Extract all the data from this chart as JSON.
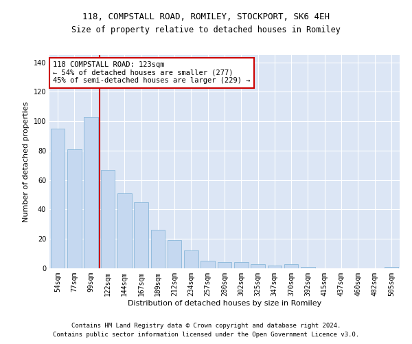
{
  "title1": "118, COMPSTALL ROAD, ROMILEY, STOCKPORT, SK6 4EH",
  "title2": "Size of property relative to detached houses in Romiley",
  "xlabel": "Distribution of detached houses by size in Romiley",
  "ylabel": "Number of detached properties",
  "categories": [
    "54sqm",
    "77sqm",
    "99sqm",
    "122sqm",
    "144sqm",
    "167sqm",
    "189sqm",
    "212sqm",
    "234sqm",
    "257sqm",
    "280sqm",
    "302sqm",
    "325sqm",
    "347sqm",
    "370sqm",
    "392sqm",
    "415sqm",
    "437sqm",
    "460sqm",
    "482sqm",
    "505sqm"
  ],
  "values": [
    95,
    81,
    103,
    67,
    51,
    45,
    26,
    19,
    12,
    5,
    4,
    4,
    3,
    2,
    3,
    1,
    0,
    0,
    0,
    0,
    1
  ],
  "bar_color": "#c5d8f0",
  "bar_edge_color": "#7aafd4",
  "highlight_line_color": "#cc0000",
  "annotation_text": "118 COMPSTALL ROAD: 123sqm\n← 54% of detached houses are smaller (277)\n45% of semi-detached houses are larger (229) →",
  "annotation_box_color": "#ffffff",
  "annotation_box_edge": "#cc0000",
  "ylim": [
    0,
    145
  ],
  "yticks": [
    0,
    20,
    40,
    60,
    80,
    100,
    120,
    140
  ],
  "background_color": "#dce6f5",
  "footer1": "Contains HM Land Registry data © Crown copyright and database right 2024.",
  "footer2": "Contains public sector information licensed under the Open Government Licence v3.0.",
  "title1_fontsize": 9,
  "title2_fontsize": 8.5,
  "xlabel_fontsize": 8,
  "ylabel_fontsize": 8,
  "tick_fontsize": 7,
  "annotation_fontsize": 7.5,
  "footer_fontsize": 6.5
}
